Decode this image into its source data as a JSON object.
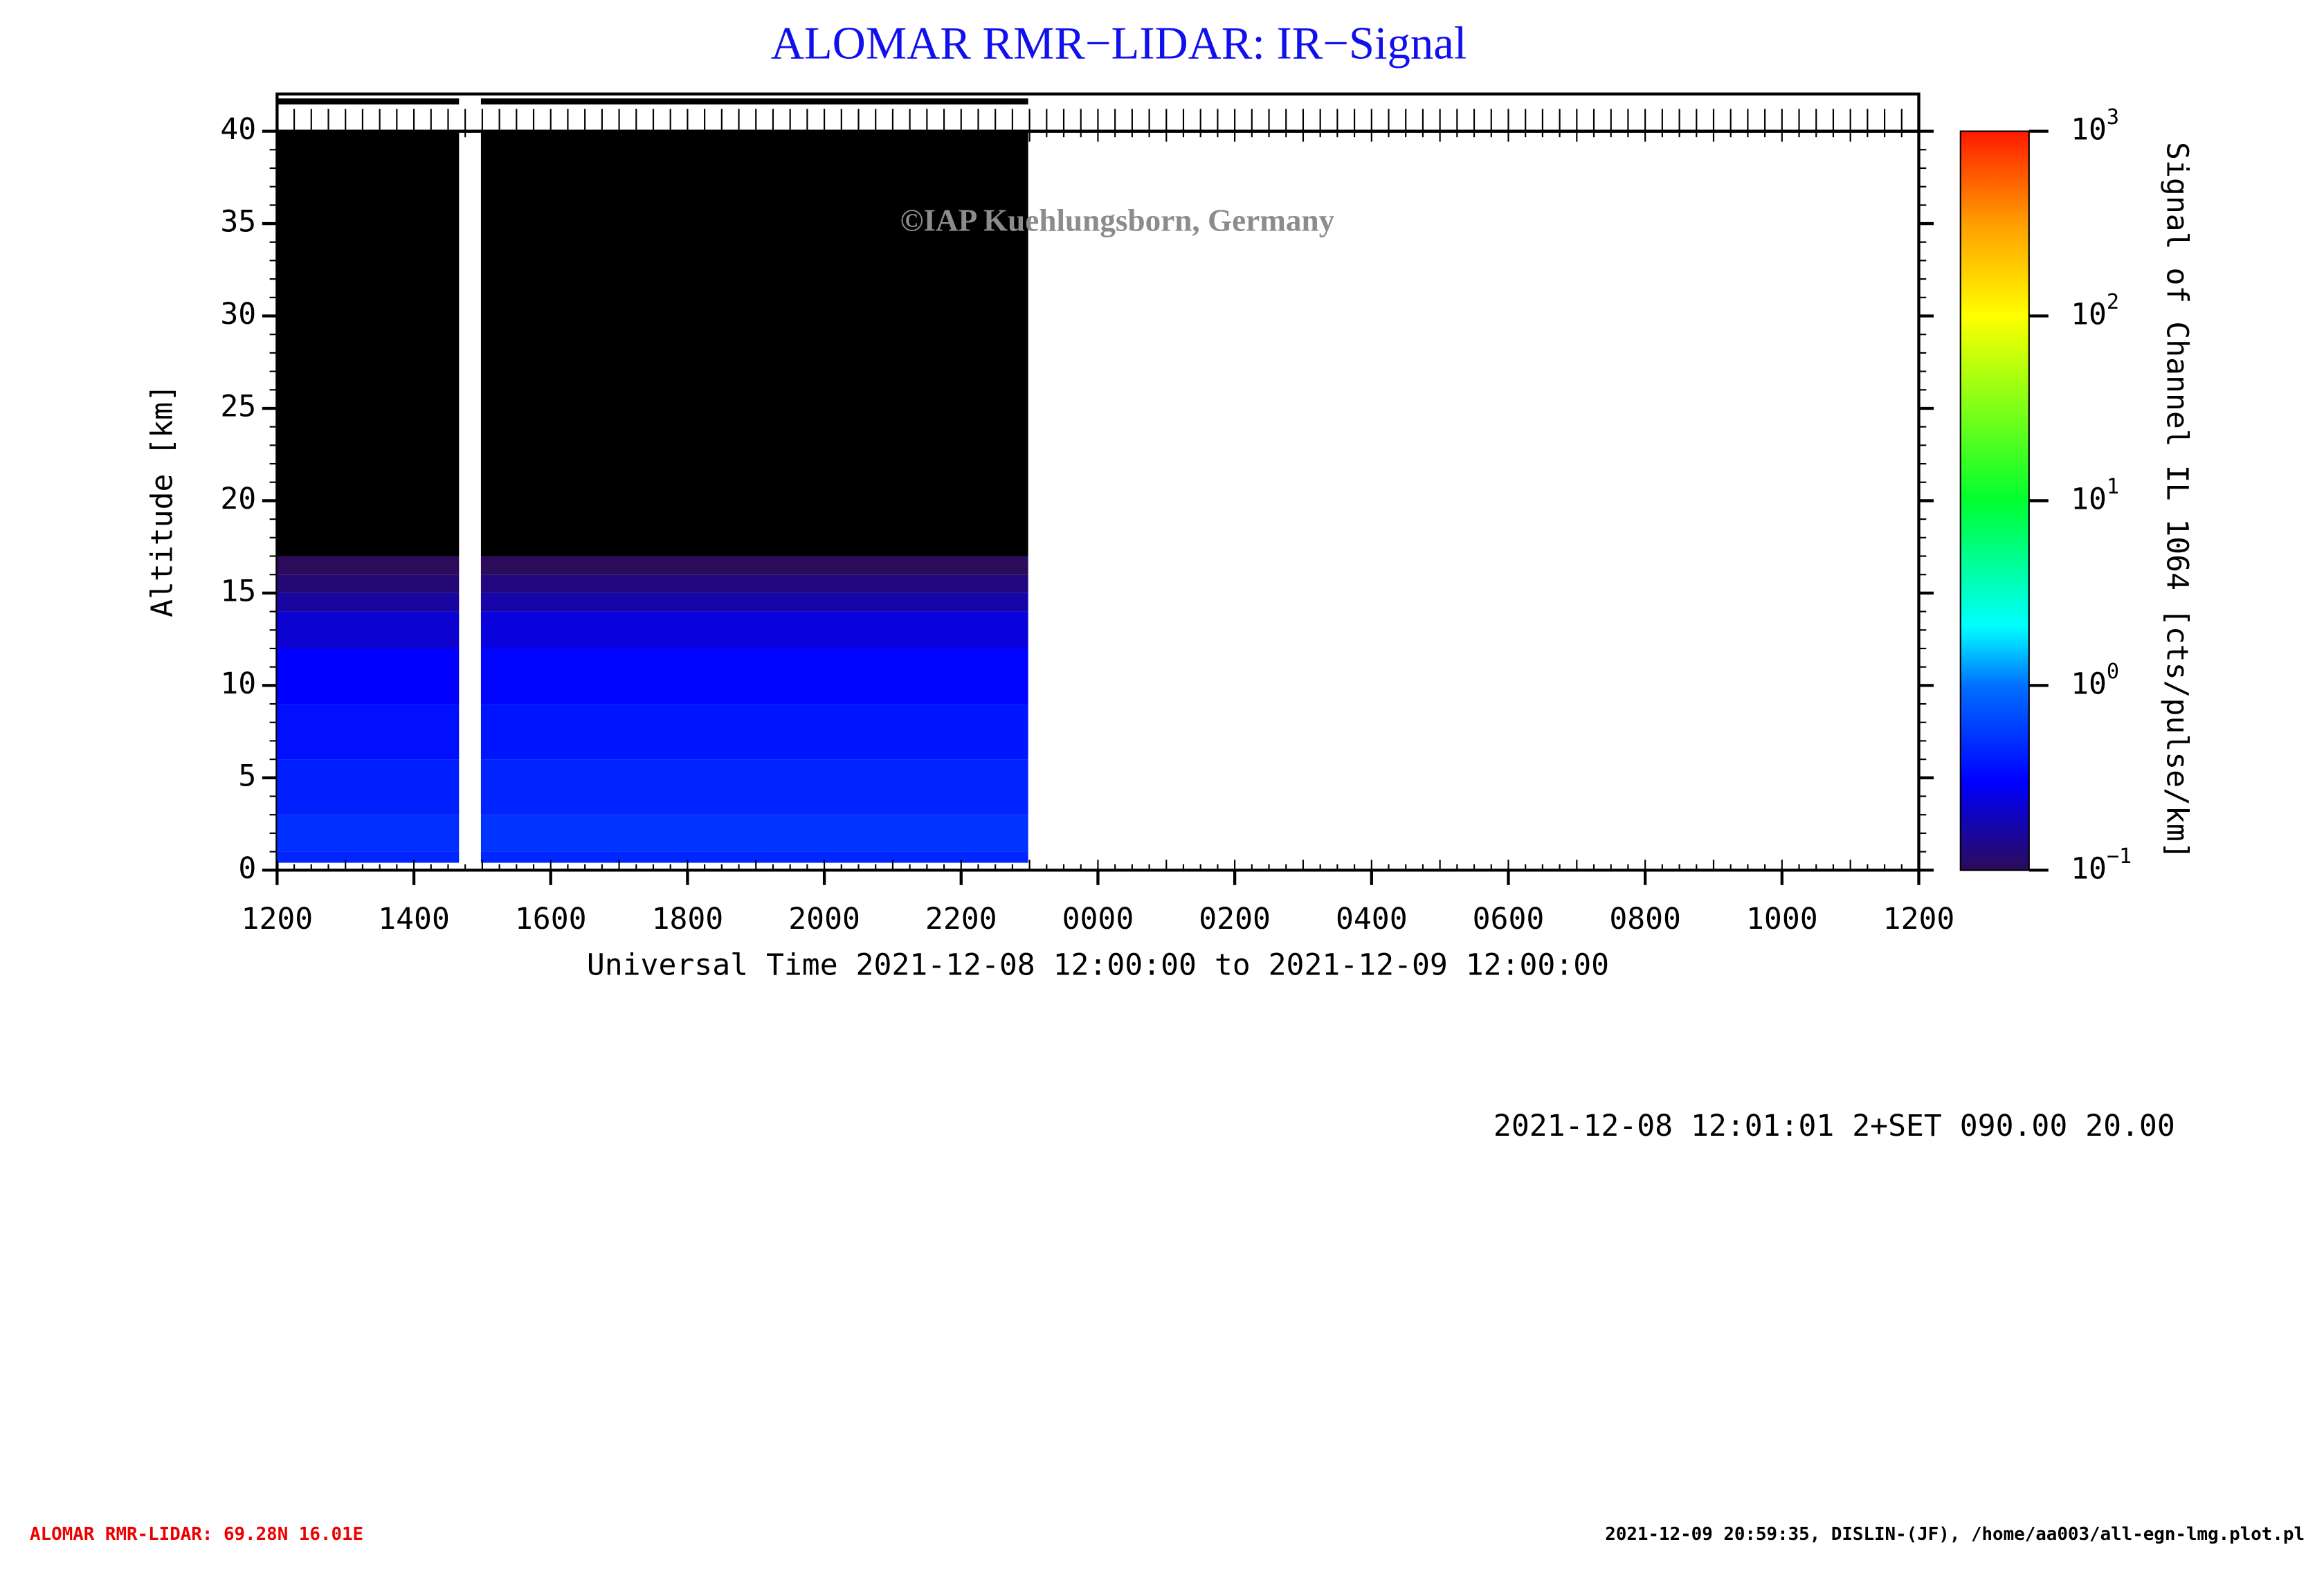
{
  "chart_data": {
    "type": "heatmap",
    "title": "ALOMAR RMR−LIDAR: IR−Signal",
    "xlabel": "Universal Time 2021-12-08 12:00:00 to 2021-12-09 12:00:00",
    "ylabel": "Altitude [km]",
    "colorbar_label": "Signal of Channel IL 1064 [cts/pulse/km]",
    "xlim": [
      12,
      36
    ],
    "xticks": [
      {
        "value": 12,
        "label": "1200"
      },
      {
        "value": 14,
        "label": "1400"
      },
      {
        "value": 16,
        "label": "1600"
      },
      {
        "value": 18,
        "label": "1800"
      },
      {
        "value": 20,
        "label": "2000"
      },
      {
        "value": 22,
        "label": "2200"
      },
      {
        "value": 24,
        "label": "0000"
      },
      {
        "value": 26,
        "label": "0200"
      },
      {
        "value": 28,
        "label": "0400"
      },
      {
        "value": 30,
        "label": "0600"
      },
      {
        "value": 32,
        "label": "0800"
      },
      {
        "value": 34,
        "label": "1000"
      },
      {
        "value": 36,
        "label": "1200"
      }
    ],
    "ylim": [
      0,
      40
    ],
    "yticks": [
      0,
      5,
      10,
      15,
      20,
      25,
      30,
      35,
      40
    ],
    "clim": [
      0.1,
      1000
    ],
    "log_color_scale": true,
    "cticks": [
      {
        "value": 0.1,
        "label": "10",
        "exponent": "−1"
      },
      {
        "value": 1,
        "label": "10",
        "exponent": "0"
      },
      {
        "value": 10,
        "label": "10",
        "exponent": "1"
      },
      {
        "value": 100,
        "label": "10",
        "exponent": "2"
      },
      {
        "value": 1000,
        "label": "10",
        "exponent": "3"
      }
    ],
    "y_bins": [
      0.4,
      1,
      3,
      6,
      9,
      12,
      14,
      15,
      16,
      17,
      40
    ],
    "series": [
      {
        "x_range": [
          12,
          14.66
        ],
        "values": [
          0.45,
          0.5,
          0.42,
          0.36,
          0.3,
          0.22,
          0.16,
          0.12,
          0.1,
          0.05
        ]
      },
      {
        "x_range": [
          14.98,
          22.98
        ],
        "values": [
          0.46,
          0.52,
          0.44,
          0.38,
          0.32,
          0.24,
          0.17,
          0.13,
          0.1,
          0.05
        ]
      }
    ],
    "annotations": {
      "watermark": "©IAP Kuehlungsborn, Germany",
      "info": "2021-12-08 12:01:01 2+SET 090.00 20.00",
      "footer_left": "ALOMAR RMR-LIDAR: 69.28N 16.01E",
      "footer_right": "2021-12-09 20:59:35, DISLIN-(JF), /home/aa003/all-egn-lmg.plot.pl"
    }
  }
}
